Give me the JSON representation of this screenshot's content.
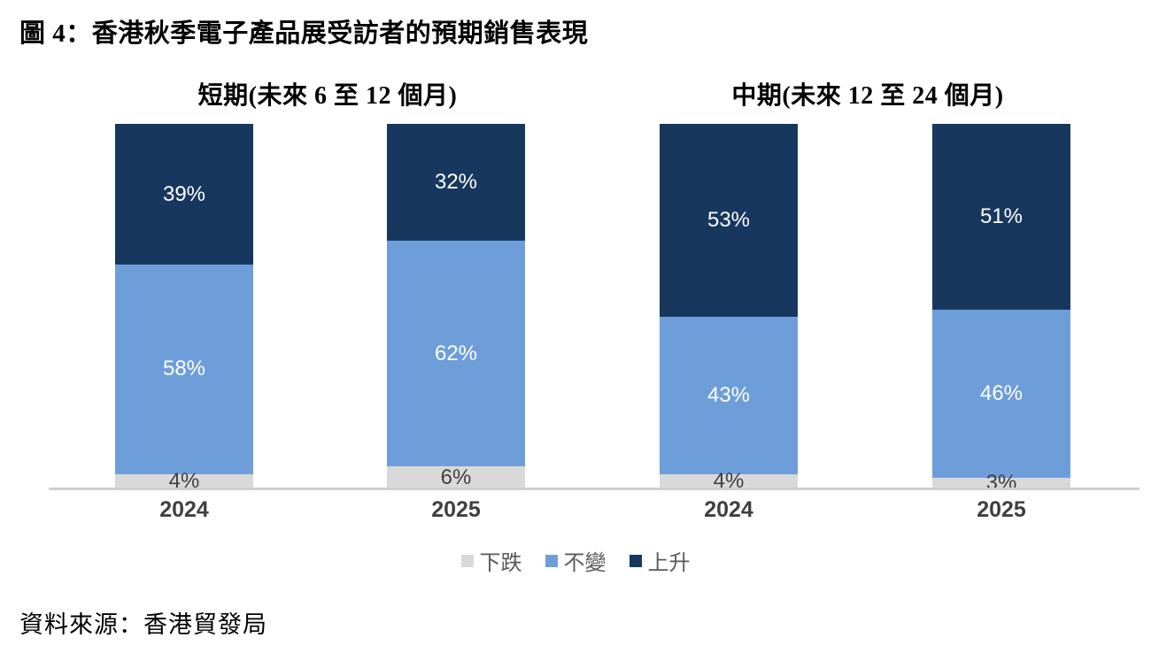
{
  "figure_title": "圖 4：香港秋季電子產品展受訪者的預期銷售表現",
  "source": "資料來源：香港貿發局",
  "legend": {
    "items": [
      {
        "label": "下跌",
        "color": "#D9D9D9"
      },
      {
        "label": "不變",
        "color": "#6D9EDA"
      },
      {
        "label": "上升",
        "color": "#17375E"
      }
    ]
  },
  "chart_data": {
    "type": "bar",
    "stacked": true,
    "value_unit": "%",
    "grid": false,
    "legend_position": "bottom",
    "ylim": [
      0,
      100
    ],
    "series_colors": {
      "下跌": "#D9D9D9",
      "不變": "#6D9EDA",
      "上升": "#17375E"
    },
    "value_label_colors": {
      "下跌": "#404040",
      "不變": "#FFFFFF",
      "上升": "#FFFFFF"
    },
    "axis_line_color": "#D0CECE",
    "category_label_color": "#404040",
    "groups": [
      {
        "title": "短期(未來 6 至 12 個月)",
        "categories": [
          "2024",
          "2025"
        ],
        "series": [
          {
            "name": "下跌",
            "values": [
              4,
              6
            ]
          },
          {
            "name": "不變",
            "values": [
              58,
              62
            ]
          },
          {
            "name": "上升",
            "values": [
              39,
              32
            ]
          }
        ]
      },
      {
        "title": "中期(未來 12 至 24 個月)",
        "categories": [
          "2024",
          "2025"
        ],
        "series": [
          {
            "name": "下跌",
            "values": [
              4,
              3
            ]
          },
          {
            "name": "不變",
            "values": [
              43,
              46
            ]
          },
          {
            "name": "上升",
            "values": [
              53,
              51
            ]
          }
        ]
      }
    ]
  }
}
